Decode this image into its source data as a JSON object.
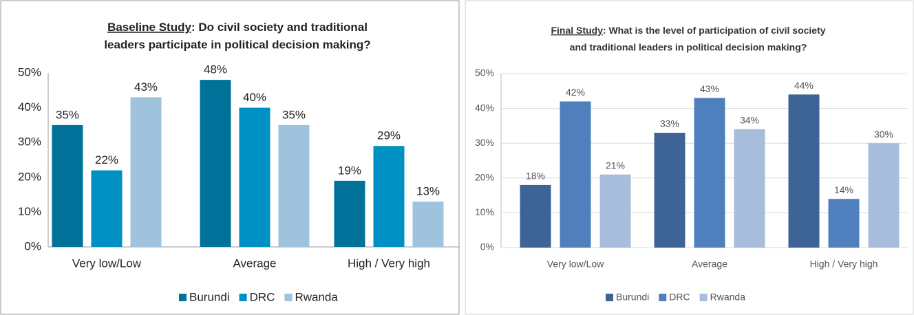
{
  "chart_data": [
    {
      "type": "bar",
      "title": {
        "underlined": "Baseline Study",
        "line1": ": Do civil society and traditional",
        "line2": "leaders participate  in political decision making?"
      },
      "categories": [
        "Very low/Low",
        "Average",
        "High / Very high"
      ],
      "series": [
        {
          "name": "Burundi",
          "color": "#00729a",
          "values": [
            35,
            48,
            19
          ],
          "value_labels": [
            "35%",
            "48%",
            "19%"
          ]
        },
        {
          "name": "DRC",
          "color": "#0091c4",
          "values": [
            22,
            40,
            29
          ],
          "value_labels": [
            "22%",
            "40%",
            "29%"
          ]
        },
        {
          "name": "Rwanda",
          "color": "#9fc3dc",
          "values": [
            43,
            35,
            13
          ],
          "value_labels": [
            "43%",
            "35%",
            "13%"
          ]
        }
      ],
      "ylim": [
        0,
        50
      ],
      "yticks": [
        {
          "value": 0,
          "label": "0%"
        },
        {
          "value": 10,
          "label": "10%"
        },
        {
          "value": 20,
          "label": "20%"
        },
        {
          "value": 30,
          "label": "30%"
        },
        {
          "value": 40,
          "label": "40%"
        },
        {
          "value": 50,
          "label": "50%"
        }
      ],
      "grid": false,
      "legend": "bottom"
    },
    {
      "type": "bar",
      "title": {
        "underlined": "Final Study",
        "line1": ": What is the level of participation of civil society",
        "line2": "and traditional leaders in political decision making?"
      },
      "categories": [
        "Very low/Low",
        "Average",
        "High / Very high"
      ],
      "series": [
        {
          "name": "Burundi",
          "color": "#3e6497",
          "values": [
            18,
            33,
            44
          ],
          "value_labels": [
            "18%",
            "33%",
            "44%"
          ]
        },
        {
          "name": "DRC",
          "color": "#4f80bd",
          "values": [
            42,
            43,
            14
          ],
          "value_labels": [
            "42%",
            "43%",
            "14%"
          ]
        },
        {
          "name": "Rwanda",
          "color": "#a8bddb",
          "values": [
            21,
            34,
            30
          ],
          "value_labels": [
            "21%",
            "34%",
            "30%"
          ]
        }
      ],
      "ylim": [
        0,
        50
      ],
      "yticks": [
        {
          "value": 0,
          "label": "0%"
        },
        {
          "value": 10,
          "label": "10%"
        },
        {
          "value": 20,
          "label": "20%"
        },
        {
          "value": 30,
          "label": "30%"
        },
        {
          "value": 40,
          "label": "40%"
        },
        {
          "value": 50,
          "label": "50%"
        }
      ],
      "grid": true,
      "legend": "bottom"
    }
  ]
}
